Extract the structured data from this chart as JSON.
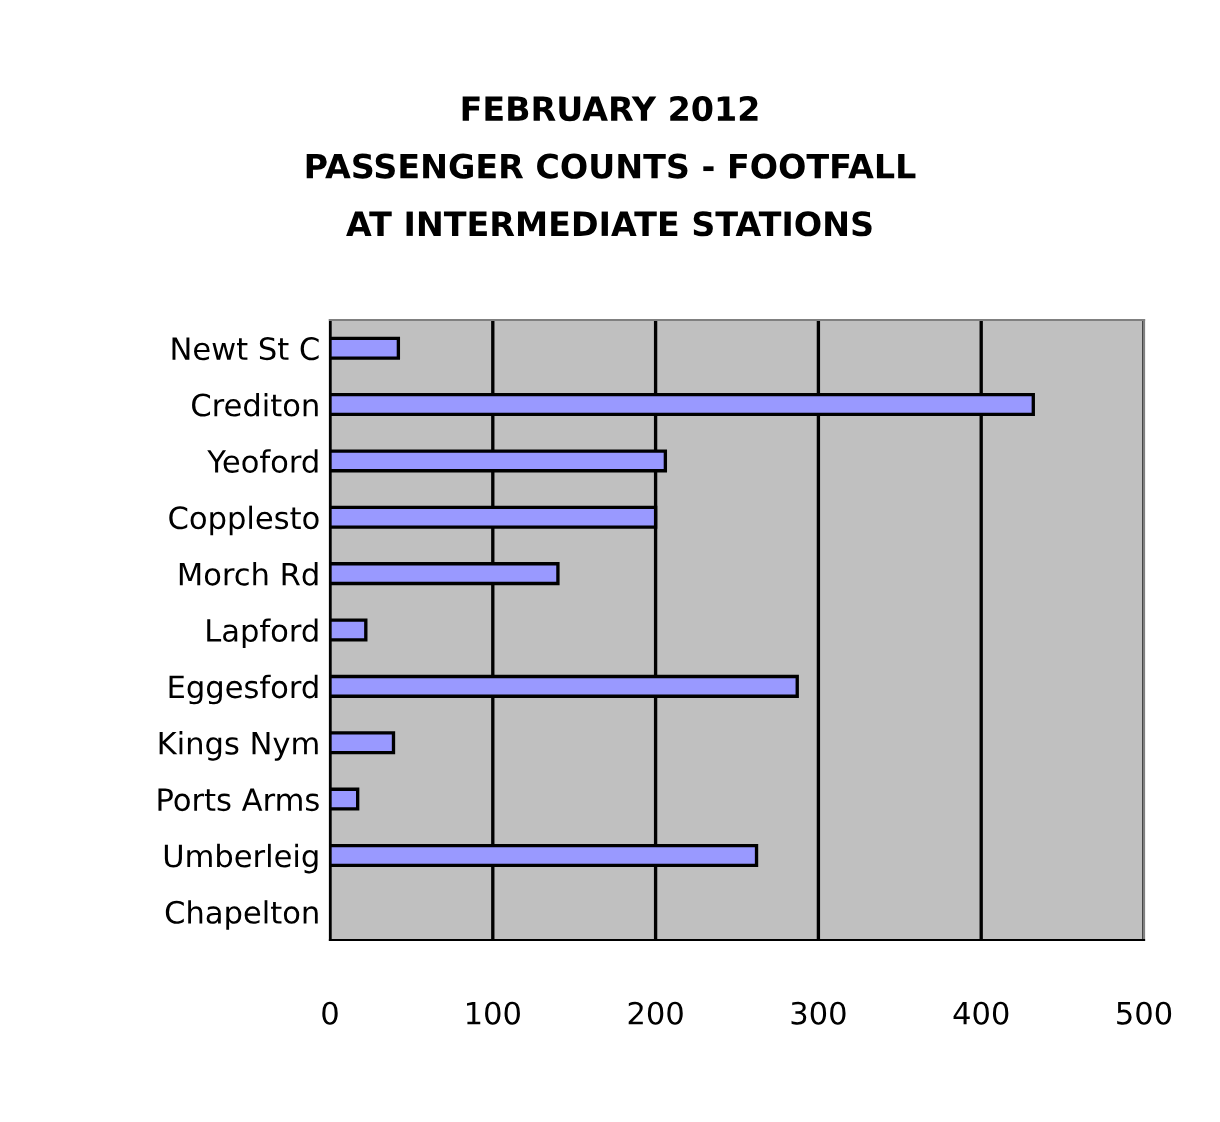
{
  "chart_data": {
    "type": "bar",
    "orientation": "horizontal",
    "title": "FEBRUARY 2012\nPASSENGER COUNTS - FOOTFALL\nAT INTERMEDIATE STATIONS",
    "categories": [
      "Newt St C",
      "Crediton",
      "Yeoford",
      "Copplesto",
      "Morch Rd",
      "Lapford",
      "Eggesford",
      "Kings Nym",
      "Ports Arms",
      "Umberleig",
      "Chapelton"
    ],
    "values": [
      42,
      432,
      206,
      200,
      140,
      22,
      287,
      39,
      17,
      262,
      null
    ],
    "color": "#9999ff",
    "xlim": [
      0,
      500
    ],
    "xticks": [
      0,
      100,
      200,
      300,
      400,
      500
    ],
    "grid": "x",
    "legend": false
  }
}
